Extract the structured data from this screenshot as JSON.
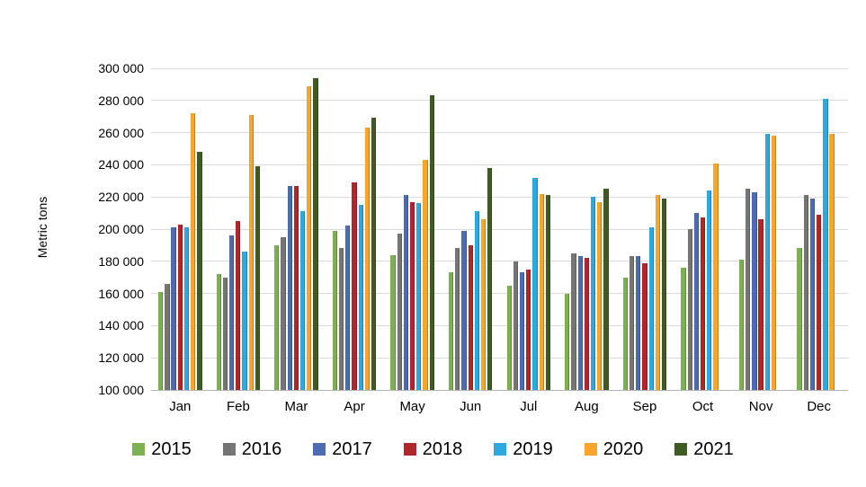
{
  "chart_data": {
    "type": "bar",
    "title": "",
    "xlabel": "",
    "ylabel": "Metric tons",
    "grid": "horizontal",
    "legend_position": "bottom",
    "ylim": [
      100000,
      300000
    ],
    "yticks": [
      {
        "value": 100000,
        "label": "100 000"
      },
      {
        "value": 120000,
        "label": "120 000"
      },
      {
        "value": 140000,
        "label": "140 000"
      },
      {
        "value": 160000,
        "label": "160 000"
      },
      {
        "value": 180000,
        "label": "180 000"
      },
      {
        "value": 200000,
        "label": "200 000"
      },
      {
        "value": 220000,
        "label": "220 000"
      },
      {
        "value": 240000,
        "label": "240 000"
      },
      {
        "value": 260000,
        "label": "260 000"
      },
      {
        "value": 280000,
        "label": "280 000"
      },
      {
        "value": 300000,
        "label": "300 000"
      }
    ],
    "categories": [
      "Jan",
      "Feb",
      "Mar",
      "Apr",
      "May",
      "Jun",
      "Jul",
      "Aug",
      "Sep",
      "Oct",
      "Nov",
      "Dec"
    ],
    "series": [
      {
        "name": "2015",
        "color": "#7CB152",
        "values": [
          161000,
          172000,
          190000,
          199000,
          184000,
          173000,
          165000,
          160000,
          170000,
          176000,
          181000,
          188000
        ]
      },
      {
        "name": "2016",
        "color": "#757575",
        "values": [
          166000,
          170000,
          195000,
          188000,
          197000,
          188000,
          180000,
          185000,
          183000,
          200000,
          225000,
          221000
        ]
      },
      {
        "name": "2017",
        "color": "#4C6BB0",
        "values": [
          201000,
          196000,
          227000,
          202000,
          221000,
          199000,
          173000,
          183000,
          183000,
          210000,
          223000,
          219000
        ]
      },
      {
        "name": "2018",
        "color": "#B0262C",
        "values": [
          203000,
          205000,
          227000,
          229000,
          217000,
          190000,
          175000,
          182000,
          179000,
          207000,
          206000,
          209000
        ]
      },
      {
        "name": "2019",
        "color": "#2FA8DF",
        "values": [
          201000,
          186000,
          211000,
          215000,
          216000,
          211000,
          232000,
          220000,
          201000,
          224000,
          259000,
          281000
        ]
      },
      {
        "name": "2020",
        "color": "#F6A62C",
        "values": [
          272000,
          271000,
          289000,
          263000,
          243000,
          206000,
          222000,
          217000,
          221000,
          241000,
          258000,
          259000
        ]
      },
      {
        "name": "2021",
        "color": "#3F5A22",
        "values": [
          248000,
          239000,
          294000,
          269000,
          283000,
          238000,
          221000,
          225000,
          219000,
          null,
          null,
          null
        ]
      }
    ]
  }
}
